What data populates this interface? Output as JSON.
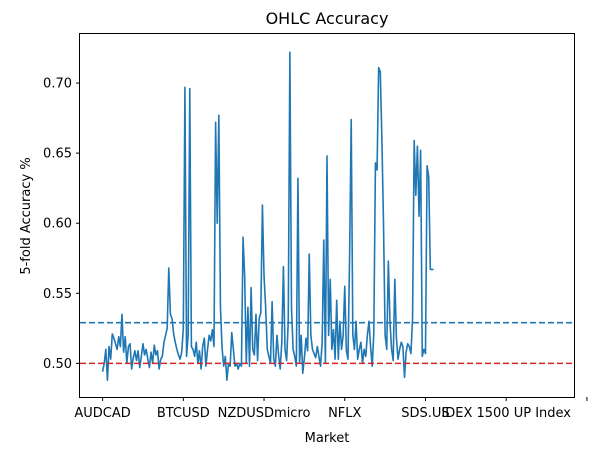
{
  "chart_data": {
    "type": "line",
    "title": "OHLC Accuracy",
    "xlabel": "Market",
    "ylabel": "5-fold Accuracy %",
    "ylim": [
      0.476,
      0.735
    ],
    "xlim": [
      -14,
      292
    ],
    "x_ticks": [
      {
        "x": 0,
        "label": "AUDCAD"
      },
      {
        "x": 50,
        "label": "BTCUSD"
      },
      {
        "x": 100,
        "label": "NZDUSDmicro"
      },
      {
        "x": 150,
        "label": "NFLX"
      },
      {
        "x": 200,
        "label": "SDS.US"
      },
      {
        "x": 250,
        "label": "IDEX 1500 UP Index"
      },
      {
        "x": 300,
        "label": ""
      }
    ],
    "y_ticks": [
      0.5,
      0.55,
      0.6,
      0.65,
      0.7
    ],
    "y_tick_labels": [
      "0.50",
      "0.55",
      "0.60",
      "0.65",
      "0.70"
    ],
    "grid": false,
    "series": [
      {
        "color": "#1f77b4",
        "style": "solid",
        "points": [
          [
            0,
            0.494
          ],
          [
            1,
            0.5
          ],
          [
            2,
            0.51
          ],
          [
            3,
            0.488
          ],
          [
            4,
            0.512
          ],
          [
            5,
            0.503
          ],
          [
            6,
            0.521
          ],
          [
            7,
            0.518
          ],
          [
            8,
            0.514
          ],
          [
            9,
            0.51
          ],
          [
            10,
            0.519
          ],
          [
            11,
            0.512
          ],
          [
            12,
            0.535
          ],
          [
            13,
            0.508
          ],
          [
            14,
            0.519
          ],
          [
            15,
            0.5
          ],
          [
            16,
            0.512
          ],
          [
            17,
            0.514
          ],
          [
            18,
            0.496
          ],
          [
            19,
            0.504
          ],
          [
            20,
            0.509
          ],
          [
            21,
            0.502
          ],
          [
            22,
            0.509
          ],
          [
            23,
            0.497
          ],
          [
            24,
            0.505
          ],
          [
            25,
            0.514
          ],
          [
            26,
            0.506
          ],
          [
            27,
            0.51
          ],
          [
            28,
            0.503
          ],
          [
            29,
            0.497
          ],
          [
            30,
            0.508
          ],
          [
            31,
            0.5
          ],
          [
            32,
            0.513
          ],
          [
            33,
            0.506
          ],
          [
            34,
            0.509
          ],
          [
            35,
            0.496
          ],
          [
            36,
            0.503
          ],
          [
            37,
            0.505
          ],
          [
            38,
            0.515
          ],
          [
            39,
            0.52
          ],
          [
            40,
            0.525
          ],
          [
            41,
            0.568
          ],
          [
            42,
            0.535
          ],
          [
            43,
            0.532
          ],
          [
            44,
            0.521
          ],
          [
            45,
            0.515
          ],
          [
            46,
            0.51
          ],
          [
            47,
            0.506
          ],
          [
            48,
            0.503
          ],
          [
            49,
            0.508
          ],
          [
            50,
            0.525
          ],
          [
            51,
            0.697
          ],
          [
            52,
            0.505
          ],
          [
            53,
            0.52
          ],
          [
            54,
            0.696
          ],
          [
            55,
            0.512
          ],
          [
            56,
            0.51
          ],
          [
            57,
            0.505
          ],
          [
            58,
            0.515
          ],
          [
            59,
            0.5
          ],
          [
            60,
            0.509
          ],
          [
            61,
            0.496
          ],
          [
            62,
            0.512
          ],
          [
            63,
            0.518
          ],
          [
            64,
            0.498
          ],
          [
            65,
            0.51
          ],
          [
            66,
            0.52
          ],
          [
            67,
            0.516
          ],
          [
            68,
            0.524
          ],
          [
            69,
            0.512
          ],
          [
            70,
            0.672
          ],
          [
            71,
            0.6
          ],
          [
            72,
            0.677
          ],
          [
            73,
            0.54
          ],
          [
            74,
            0.511
          ],
          [
            75,
            0.498
          ],
          [
            76,
            0.505
          ],
          [
            77,
            0.488
          ],
          [
            78,
            0.5
          ],
          [
            79,
            0.498
          ],
          [
            80,
            0.522
          ],
          [
            81,
            0.51
          ],
          [
            82,
            0.498
          ],
          [
            83,
            0.5
          ],
          [
            84,
            0.496
          ],
          [
            85,
            0.5
          ],
          [
            86,
            0.498
          ],
          [
            87,
            0.59
          ],
          [
            88,
            0.562
          ],
          [
            89,
            0.5
          ],
          [
            90,
            0.54
          ],
          [
            91,
            0.498
          ],
          [
            92,
            0.554
          ],
          [
            93,
            0.51
          ],
          [
            94,
            0.506
          ],
          [
            95,
            0.535
          ],
          [
            96,
            0.502
          ],
          [
            97,
            0.532
          ],
          [
            98,
            0.536
          ],
          [
            99,
            0.613
          ],
          [
            100,
            0.562
          ],
          [
            101,
            0.54
          ],
          [
            102,
            0.51
          ],
          [
            103,
            0.505
          ],
          [
            104,
            0.5
          ],
          [
            105,
            0.544
          ],
          [
            106,
            0.503
          ],
          [
            107,
            0.498
          ],
          [
            108,
            0.52
          ],
          [
            109,
            0.506
          ],
          [
            110,
            0.496
          ],
          [
            111,
            0.515
          ],
          [
            112,
            0.569
          ],
          [
            113,
            0.51
          ],
          [
            114,
            0.502
          ],
          [
            115,
            0.53
          ],
          [
            116,
            0.722
          ],
          [
            117,
            0.54
          ],
          [
            118,
            0.51
          ],
          [
            119,
            0.505
          ],
          [
            120,
            0.498
          ],
          [
            121,
            0.632
          ],
          [
            122,
            0.5
          ],
          [
            123,
            0.52
          ],
          [
            124,
            0.493
          ],
          [
            125,
            0.504
          ],
          [
            126,
            0.518
          ],
          [
            127,
            0.509
          ],
          [
            128,
            0.578
          ],
          [
            129,
            0.52
          ],
          [
            130,
            0.51
          ],
          [
            131,
            0.507
          ],
          [
            132,
            0.504
          ],
          [
            133,
            0.512
          ],
          [
            134,
            0.505
          ],
          [
            135,
            0.498
          ],
          [
            136,
            0.515
          ],
          [
            137,
            0.588
          ],
          [
            138,
            0.5
          ],
          [
            139,
            0.648
          ],
          [
            140,
            0.52
          ],
          [
            141,
            0.56
          ],
          [
            142,
            0.51
          ],
          [
            143,
            0.524
          ],
          [
            144,
            0.503
          ],
          [
            145,
            0.545
          ],
          [
            146,
            0.503
          ],
          [
            147,
            0.53
          ],
          [
            148,
            0.51
          ],
          [
            149,
            0.52
          ],
          [
            150,
            0.555
          ],
          [
            151,
            0.509
          ],
          [
            152,
            0.503
          ],
          [
            153,
            0.576
          ],
          [
            154,
            0.674
          ],
          [
            155,
            0.52
          ],
          [
            156,
            0.51
          ],
          [
            157,
            0.53
          ],
          [
            158,
            0.503
          ],
          [
            159,
            0.51
          ],
          [
            160,
            0.515
          ],
          [
            161,
            0.5
          ],
          [
            162,
            0.51
          ],
          [
            163,
            0.505
          ],
          [
            164,
            0.52
          ],
          [
            165,
            0.53
          ],
          [
            166,
            0.512
          ],
          [
            167,
            0.498
          ],
          [
            168,
            0.522
          ],
          [
            169,
            0.643
          ],
          [
            170,
            0.638
          ],
          [
            171,
            0.711
          ],
          [
            172,
            0.708
          ],
          [
            173,
            0.66
          ],
          [
            174,
            0.6
          ],
          [
            175,
            0.52
          ],
          [
            176,
            0.51
          ],
          [
            177,
            0.573
          ],
          [
            178,
            0.53
          ],
          [
            179,
            0.51
          ],
          [
            180,
            0.502
          ],
          [
            181,
            0.56
          ],
          [
            182,
            0.518
          ],
          [
            183,
            0.503
          ],
          [
            184,
            0.51
          ],
          [
            185,
            0.515
          ],
          [
            186,
            0.512
          ],
          [
            187,
            0.49
          ],
          [
            188,
            0.508
          ],
          [
            189,
            0.514
          ],
          [
            190,
            0.512
          ],
          [
            191,
            0.507
          ],
          [
            192,
            0.532
          ],
          [
            193,
            0.659
          ],
          [
            194,
            0.62
          ],
          [
            195,
            0.655
          ],
          [
            196,
            0.605
          ],
          [
            197,
            0.652
          ],
          [
            198,
            0.505
          ],
          [
            199,
            0.51
          ],
          [
            200,
            0.507
          ],
          [
            201,
            0.641
          ],
          [
            202,
            0.633
          ],
          [
            203,
            0.567
          ],
          [
            204,
            0.567
          ],
          [
            205,
            0.567
          ]
        ]
      }
    ],
    "reference_lines": [
      {
        "y": 0.529,
        "color": "#1f77b4",
        "style": "dashed"
      },
      {
        "y": 0.5,
        "color": "#d62728",
        "style": "dashed"
      }
    ]
  }
}
